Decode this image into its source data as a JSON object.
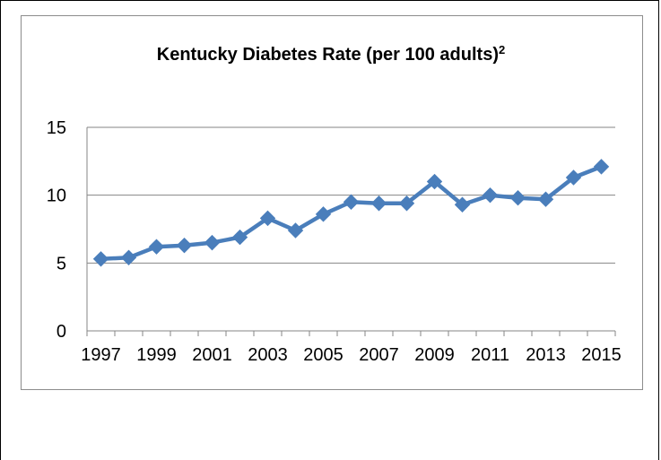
{
  "chart_data": {
    "type": "line",
    "title": "Kentucky Diabetes Rate (per 100 adults)",
    "title_superscript": "2",
    "xlabel": "",
    "ylabel": "",
    "ylim": [
      0,
      15
    ],
    "yticks": [
      0,
      5,
      10,
      15
    ],
    "x": [
      1997,
      1998,
      1999,
      2000,
      2001,
      2002,
      2003,
      2004,
      2005,
      2006,
      2007,
      2008,
      2009,
      2010,
      2011,
      2012,
      2013,
      2014,
      2015
    ],
    "xtick_labels": [
      "1997",
      "1999",
      "2001",
      "2003",
      "2005",
      "2007",
      "2009",
      "2011",
      "2013",
      "2015"
    ],
    "series": [
      {
        "values": [
          5.3,
          5.4,
          6.2,
          6.3,
          6.5,
          6.9,
          8.3,
          7.4,
          8.6,
          9.5,
          9.4,
          9.4,
          11.0,
          9.3,
          10.0,
          9.8,
          9.7,
          11.3,
          12.1
        ],
        "color": "#4a7ebb",
        "marker": "diamond"
      }
    ],
    "grid": true,
    "legend": "none"
  }
}
